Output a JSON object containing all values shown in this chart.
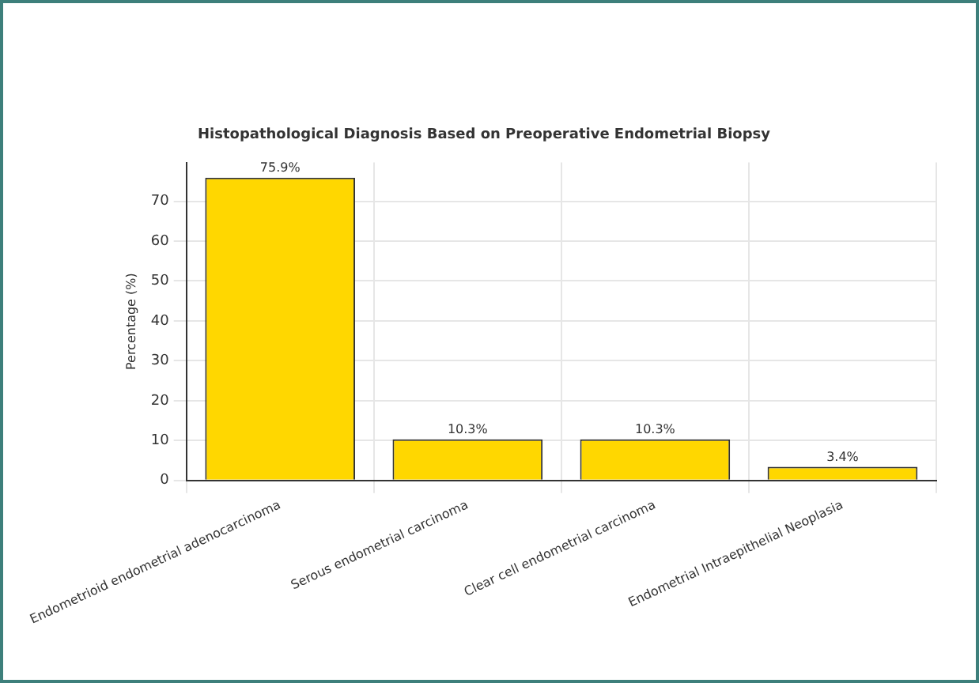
{
  "chart_data": {
    "type": "bar",
    "title": "Histopathological Diagnosis Based on Preoperative Endometrial Biopsy",
    "ylabel": "Percentage (%)",
    "categories": [
      "Endometrioid endometrial adenocarcinoma",
      "Serous endometrial carcinoma",
      "Clear cell endometrial carcinoma",
      "Endometrial Intraepithelial Neoplasia"
    ],
    "values": [
      75.9,
      10.3,
      10.3,
      3.4
    ],
    "value_labels": [
      "75.9%",
      "10.3%",
      "10.3%",
      "3.4%"
    ],
    "color": "#ffd700",
    "ylim": [
      0,
      79.7
    ],
    "yticks": [
      0,
      10,
      20,
      30,
      40,
      50,
      60,
      70
    ],
    "grid": true,
    "legend": false
  }
}
